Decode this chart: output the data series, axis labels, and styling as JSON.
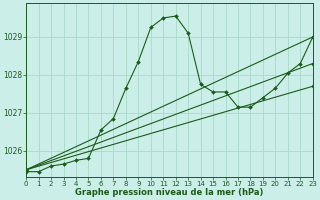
{
  "title": "Graphe pression niveau de la mer (hPa)",
  "bg_color": "#cceee8",
  "grid_color": "#aaddcc",
  "line_color": "#1a5c1a",
  "ylim": [
    1025.3,
    1029.9
  ],
  "yticks": [
    1026,
    1027,
    1028,
    1029
  ],
  "xlim": [
    0,
    23
  ],
  "xticks": [
    0,
    1,
    2,
    3,
    4,
    5,
    6,
    7,
    8,
    9,
    10,
    11,
    12,
    13,
    14,
    15,
    16,
    17,
    18,
    19,
    20,
    21,
    22,
    23
  ],
  "series": [
    {
      "x": [
        0,
        1,
        2,
        3,
        4,
        5,
        6,
        7,
        8,
        9,
        10,
        11,
        12,
        13,
        14,
        15,
        16,
        17,
        18,
        19,
        20,
        21,
        22,
        23
      ],
      "y": [
        1025.45,
        1025.45,
        1025.6,
        1025.65,
        1025.75,
        1025.8,
        1026.55,
        1026.85,
        1027.65,
        1028.35,
        1029.25,
        1029.5,
        1029.55,
        1029.1,
        1027.75,
        1027.55,
        1027.55,
        1027.15,
        1027.15,
        1027.4,
        1027.65,
        1028.05,
        1028.3,
        1029.0
      ]
    },
    {
      "x": [
        0,
        23
      ],
      "y": [
        1025.5,
        1029.0
      ]
    },
    {
      "x": [
        0,
        23
      ],
      "y": [
        1025.5,
        1028.3
      ]
    },
    {
      "x": [
        0,
        23
      ],
      "y": [
        1025.5,
        1027.7
      ]
    }
  ]
}
